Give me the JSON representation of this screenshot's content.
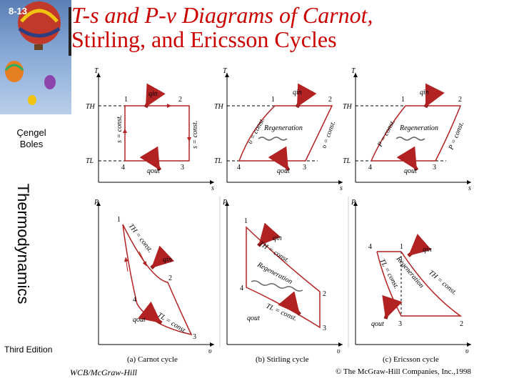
{
  "slide": {
    "number": "8-13"
  },
  "title": {
    "line1": "T-s and P-v Diagrams of Carnot,",
    "line2": "Stirling, and Ericsson Cycles"
  },
  "sidebar": {
    "author_line1": "Çengel",
    "author_line2": "Boles",
    "book": "Thermodynamics",
    "edition": "Third Edition"
  },
  "footer": {
    "publisher_left": "WCB/McGraw-Hill",
    "publisher_right": "© The McGraw-Hill Companies, Inc.,1998"
  },
  "diagram": {
    "axis_T": "T",
    "axis_s": "s",
    "axis_P": "P",
    "axis_v": "υ",
    "TH": "TH",
    "TL": "TL",
    "q_in": "qin",
    "q_out": "qout",
    "points": {
      "p1": "1",
      "p2": "2",
      "p3": "3",
      "p4": "4"
    },
    "s_const": "s = const.",
    "v_const": "υ = const.",
    "P_const": "P = const.",
    "TH_const": "TH = const.",
    "TL_const": "TL = const.",
    "regeneration": "Regeneration",
    "captions": {
      "carnot": "(a) Carnot cycle",
      "stirling": "(b) Stirling cycle",
      "ericsson": "(c) Ericsson cycle"
    }
  },
  "colors": {
    "curve": "#b22222",
    "arrow": "#8b1a1a",
    "title": "#cc0000"
  }
}
